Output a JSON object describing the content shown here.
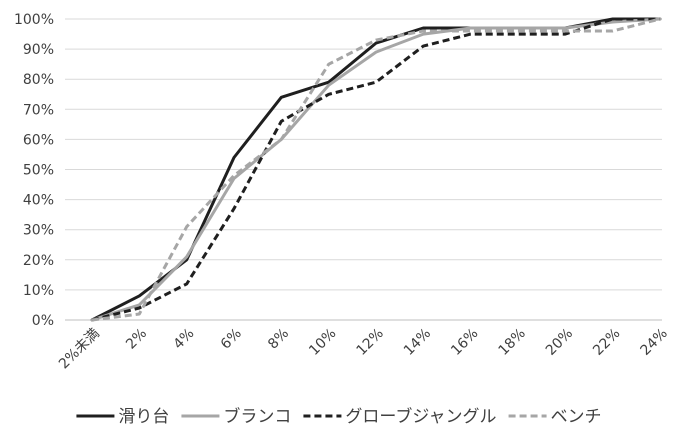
{
  "chart_data": {
    "type": "line",
    "title": "",
    "xlabel": "",
    "ylabel": "",
    "categories": [
      "2%未満",
      "2%",
      "4%",
      "6%",
      "8%",
      "10%",
      "12%",
      "14%",
      "16%",
      "18%",
      "20%",
      "22%",
      "24%"
    ],
    "y_ticks": [
      "0%",
      "10%",
      "20%",
      "30%",
      "40%",
      "50%",
      "60%",
      "70%",
      "80%",
      "90%",
      "100%"
    ],
    "ylim": [
      0,
      100
    ],
    "grid": "horizontal",
    "legend_position": "bottom",
    "series": [
      {
        "name": "滑り台",
        "color": "#1f1f1f",
        "dash": "solid",
        "values": [
          0,
          8,
          20,
          54,
          74,
          79,
          92,
          97,
          97,
          97,
          97,
          100,
          100
        ]
      },
      {
        "name": "ブランコ",
        "color": "#a6a6a6",
        "dash": "solid",
        "values": [
          0,
          5,
          21,
          47,
          60,
          78,
          89,
          95,
          97,
          97,
          97,
          99,
          100
        ]
      },
      {
        "name": "グローブジャングル",
        "color": "#1f1f1f",
        "dash": "dashed",
        "values": [
          0,
          4,
          12,
          37,
          66,
          75,
          79,
          91,
          95,
          95,
          95,
          100,
          100
        ]
      },
      {
        "name": "ベンチ",
        "color": "#a6a6a6",
        "dash": "dashed",
        "values": [
          0,
          2,
          31,
          48,
          60,
          85,
          93,
          96,
          96,
          96,
          96,
          96,
          100
        ]
      }
    ]
  }
}
